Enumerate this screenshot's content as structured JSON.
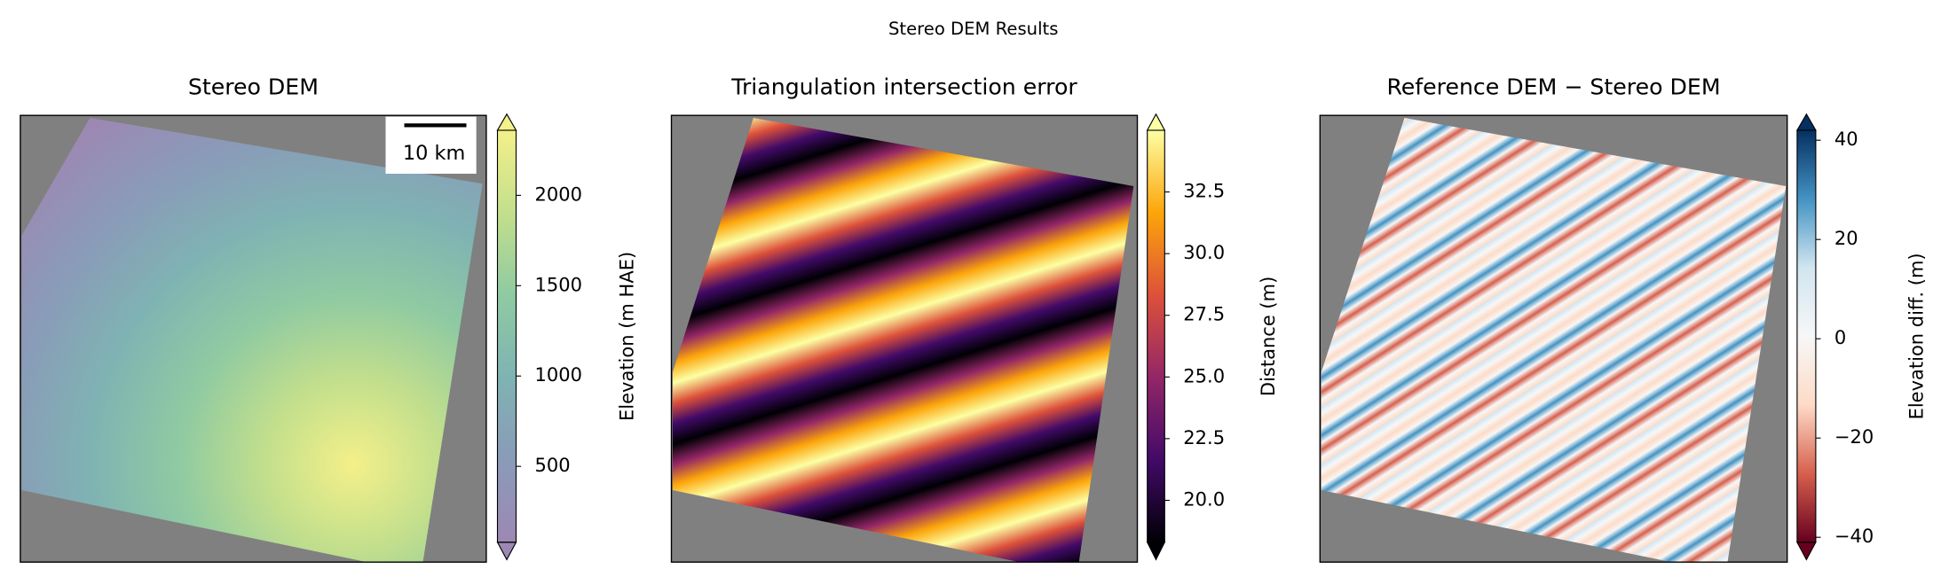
{
  "title": "Stereo DEM Results",
  "chart_data": [
    {
      "type": "image",
      "title": "Stereo DEM",
      "colorbar_label": "Elevation (m HAE)",
      "scalebar_label": "10 km",
      "ylim": [
        80,
        2360
      ],
      "yticks": [
        500,
        1000,
        1500,
        2000
      ],
      "extend": "both",
      "colormap": [
        "#9d88b3",
        "#8a9bb8",
        "#7fb3b3",
        "#8fcaa2",
        "#c3df8c",
        "#f4f08a"
      ]
    },
    {
      "type": "image",
      "title": "Triangulation intersection error",
      "colorbar_label": "Distance (m)",
      "ylim": [
        18.3,
        35.0
      ],
      "yticks": [
        {
          "value": 20,
          "label": "20.0"
        },
        {
          "value": 22.5,
          "label": "22.5"
        },
        {
          "value": 25,
          "label": "25.0"
        },
        {
          "value": 27.5,
          "label": "27.5"
        },
        {
          "value": 30,
          "label": "30.0"
        },
        {
          "value": 32.5,
          "label": "32.5"
        }
      ],
      "extend": "both",
      "colormap": [
        "#000004",
        "#420a68",
        "#932667",
        "#dd513a",
        "#fca50a",
        "#fcffa4"
      ]
    },
    {
      "type": "image",
      "title": "Reference DEM − Stereo DEM",
      "colorbar_label": "Elevation diff. (m)",
      "ylim": [
        -41,
        42
      ],
      "yticks": [
        {
          "value": -40,
          "label": "−40"
        },
        {
          "value": -20,
          "label": "−20"
        },
        0,
        20,
        40
      ],
      "extend": "both",
      "colormap": [
        "#67001f",
        "#d6604d",
        "#fddbc7",
        "#f7f7f7",
        "#d1e5f0",
        "#4393c3",
        "#053061"
      ]
    }
  ]
}
